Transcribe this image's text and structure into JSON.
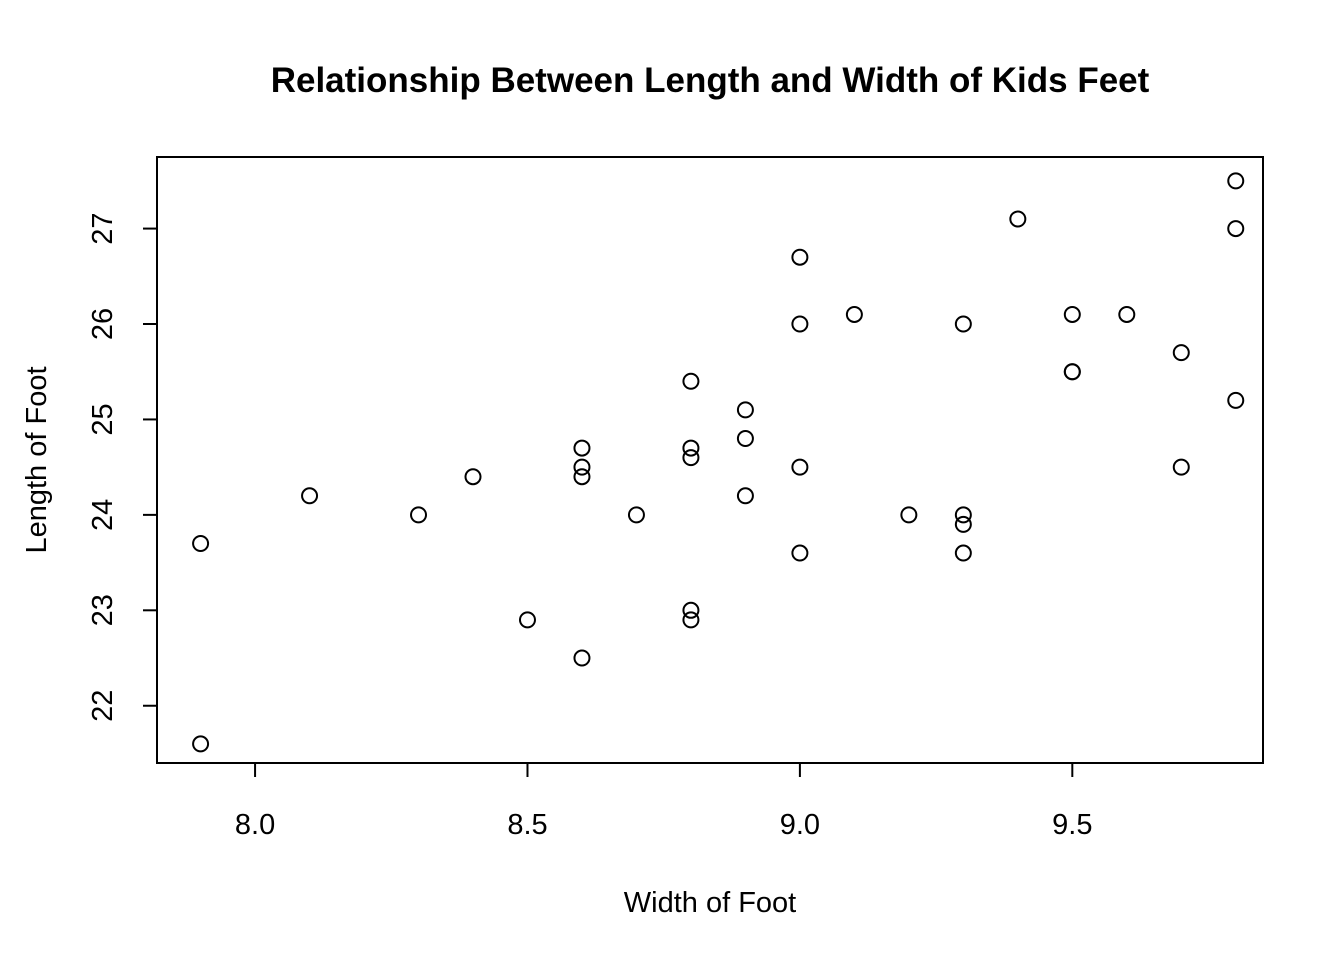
{
  "chart_data": {
    "type": "scatter",
    "title": "Relationship Between Length and Width of Kids Feet",
    "xlabel": "Width of Foot",
    "ylabel": "Length of Foot",
    "xlim": [
      7.82,
      9.85
    ],
    "ylim": [
      21.4,
      27.75
    ],
    "x_ticks": [
      8.0,
      8.5,
      9.0,
      9.5
    ],
    "x_tick_labels": [
      "8.0",
      "8.5",
      "9.0",
      "9.5"
    ],
    "y_ticks": [
      22,
      23,
      24,
      25,
      26,
      27
    ],
    "y_tick_labels": [
      "22",
      "23",
      "24",
      "25",
      "26",
      "27"
    ],
    "grid": false,
    "points": [
      {
        "x": 7.9,
        "y": 23.7
      },
      {
        "x": 7.9,
        "y": 21.6
      },
      {
        "x": 8.1,
        "y": 24.2
      },
      {
        "x": 8.3,
        "y": 24.0
      },
      {
        "x": 8.4,
        "y": 24.4
      },
      {
        "x": 8.5,
        "y": 22.9
      },
      {
        "x": 8.6,
        "y": 24.7
      },
      {
        "x": 8.6,
        "y": 24.5
      },
      {
        "x": 8.6,
        "y": 24.4
      },
      {
        "x": 8.6,
        "y": 22.5
      },
      {
        "x": 8.7,
        "y": 24.0
      },
      {
        "x": 8.8,
        "y": 25.4
      },
      {
        "x": 8.8,
        "y": 24.7
      },
      {
        "x": 8.8,
        "y": 24.6
      },
      {
        "x": 8.8,
        "y": 23.0
      },
      {
        "x": 8.8,
        "y": 22.9
      },
      {
        "x": 8.9,
        "y": 25.1
      },
      {
        "x": 8.9,
        "y": 24.8
      },
      {
        "x": 8.9,
        "y": 24.2
      },
      {
        "x": 9.0,
        "y": 26.7
      },
      {
        "x": 9.0,
        "y": 26.0
      },
      {
        "x": 9.0,
        "y": 24.5
      },
      {
        "x": 9.0,
        "y": 23.6
      },
      {
        "x": 9.1,
        "y": 26.1
      },
      {
        "x": 9.2,
        "y": 24.0
      },
      {
        "x": 9.3,
        "y": 26.0
      },
      {
        "x": 9.3,
        "y": 24.0
      },
      {
        "x": 9.3,
        "y": 23.9
      },
      {
        "x": 9.3,
        "y": 23.6
      },
      {
        "x": 9.4,
        "y": 27.1
      },
      {
        "x": 9.5,
        "y": 26.1
      },
      {
        "x": 9.5,
        "y": 25.5
      },
      {
        "x": 9.5,
        "y": 25.5
      },
      {
        "x": 9.6,
        "y": 26.1
      },
      {
        "x": 9.7,
        "y": 25.7
      },
      {
        "x": 9.7,
        "y": 24.5
      },
      {
        "x": 9.8,
        "y": 27.5
      },
      {
        "x": 9.8,
        "y": 27.0
      },
      {
        "x": 9.8,
        "y": 25.2
      }
    ]
  }
}
